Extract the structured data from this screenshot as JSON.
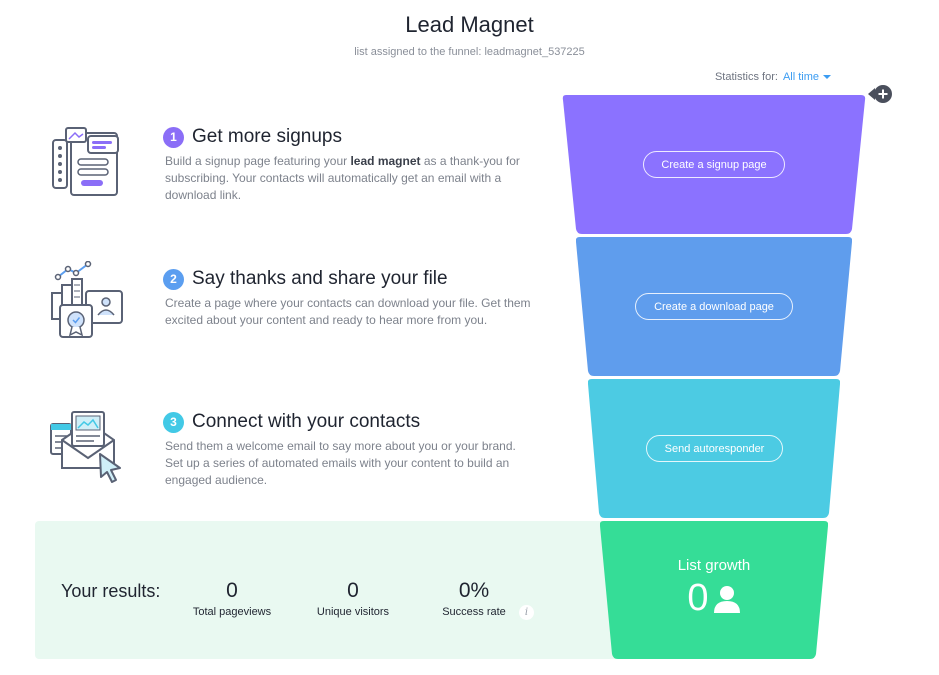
{
  "header": {
    "title": "Lead Magnet",
    "subtitle": "list assigned to the funnel: leadmagnet_537225"
  },
  "stats": {
    "label": "Statistics for:",
    "range": "All time"
  },
  "steps": [
    {
      "number": "1",
      "title": "Get more signups",
      "desc_before": "Build a signup page featuring your ",
      "desc_bold": "lead magnet",
      "desc_after": " as a thank-you for subscribing. Your contacts will automatically get an email with a download link.",
      "icon": "signup-form-icon",
      "color": "#8b6ef7"
    },
    {
      "number": "2",
      "title": "Say thanks and share your file",
      "description": "Create a page where your contacts can download your file. Get them excited about your content and ready to hear more from you.",
      "icon": "download-page-icon",
      "color": "#5b9ef0"
    },
    {
      "number": "3",
      "title": "Connect with your contacts",
      "description": "Send them a welcome email to say more about you or your brand. Set up a series of automated emails with your content to build an engaged audience.",
      "icon": "email-envelope-icon",
      "color": "#42c9e6"
    }
  ],
  "funnel": {
    "buttons": [
      "Create a signup page",
      "Create a download page",
      "Send autoresponder"
    ],
    "colors": [
      "#8b72ff",
      "#5f9ded",
      "#4ccbe3",
      "#35dd97"
    ]
  },
  "results": {
    "label": "Your results:",
    "metrics": [
      {
        "value": "0",
        "caption": "Total pageviews"
      },
      {
        "value": "0",
        "caption": "Unique visitors"
      },
      {
        "value": "0%",
        "caption": "Success rate"
      }
    ],
    "info_glyph": "i"
  },
  "growth": {
    "title": "List growth",
    "value": "0",
    "icon": "person-icon"
  },
  "add_glyph": "+"
}
